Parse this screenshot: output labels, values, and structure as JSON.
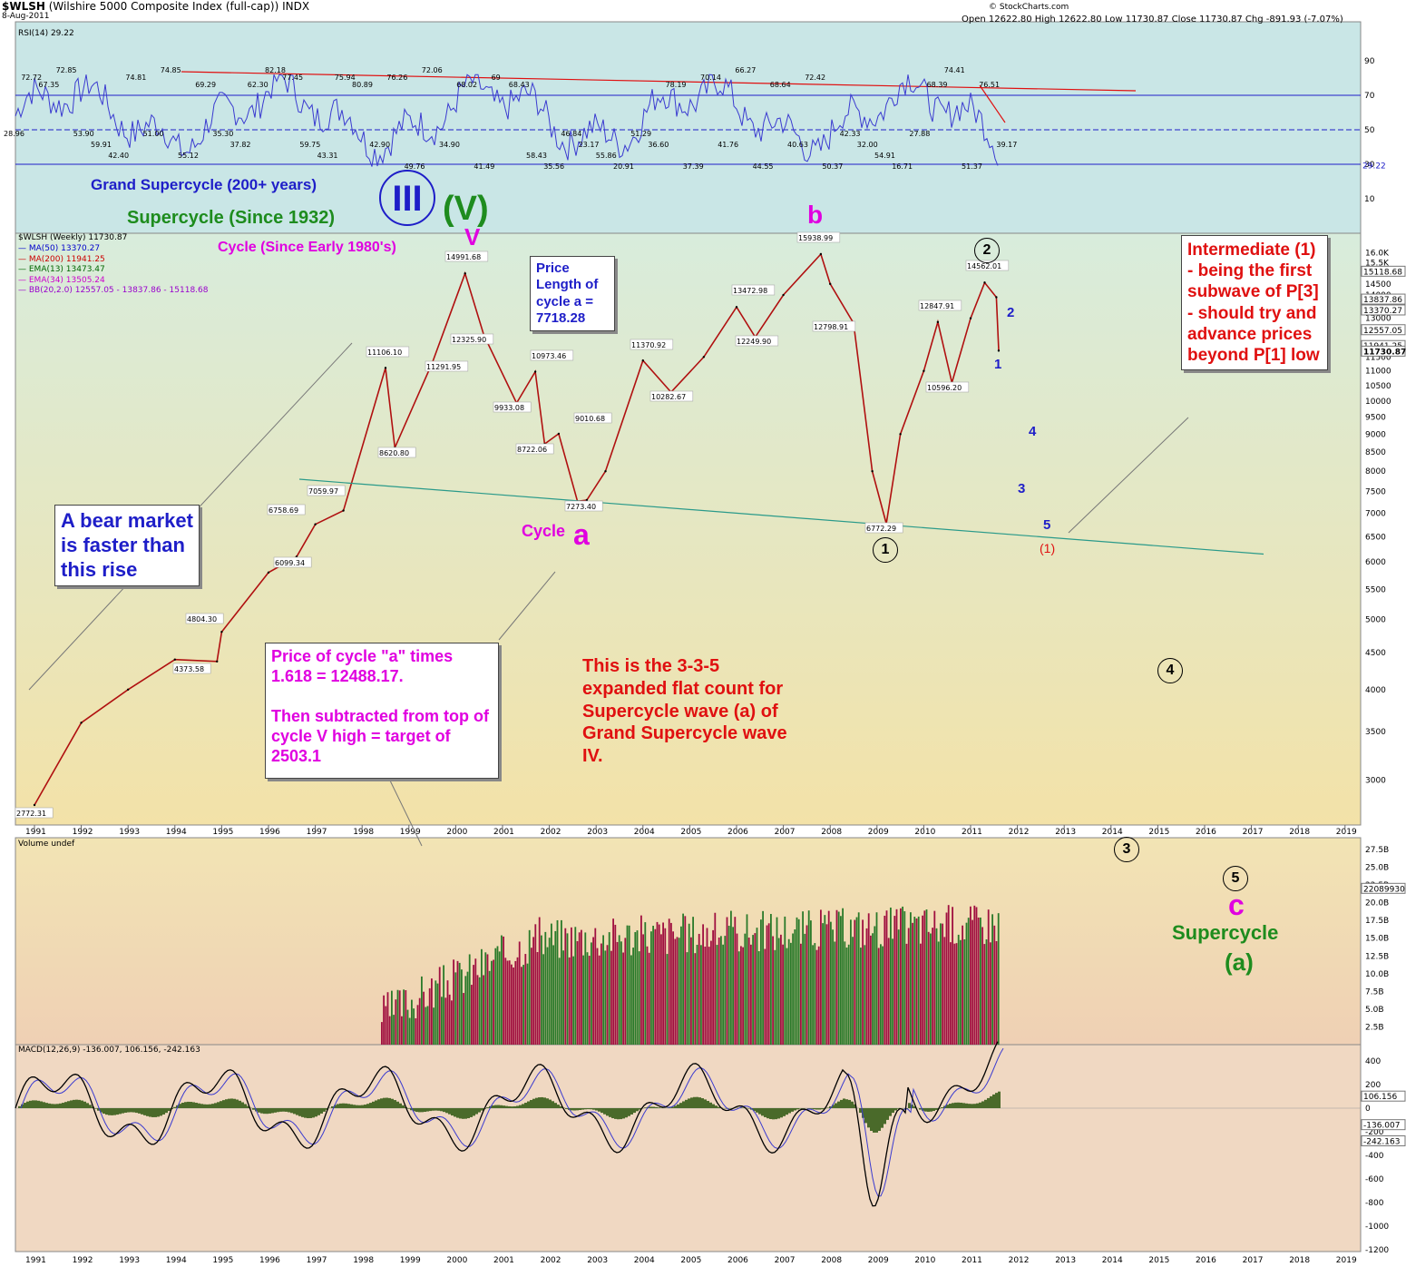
{
  "header": {
    "symbol": "$WLSH",
    "name": "(Wilshire 5000 Composite Index (full-cap))",
    "exchange": "INDX",
    "date": "8-Aug-2011",
    "ohlc": "Open 12622.80  High 12622.80  Low 11730.87  Close 11730.87  Chg -891.93 (-7.07%)",
    "watermark": "© StockCharts.com"
  },
  "rsi_panel": {
    "label": "RSI(14) 29.22",
    "ticks": [
      "90",
      "70",
      "50",
      "30",
      "10"
    ],
    "last_value": "29.22",
    "value_labels": [
      "28.96",
      "72.72",
      "67.35",
      "72.85",
      "53.90",
      "59.91",
      "42.40",
      "74.81",
      "51.00",
      "74.85",
      "55.12",
      "69.29",
      "35.30",
      "37.82",
      "62.30",
      "82.18",
      "77.45",
      "59.75",
      "43.31",
      "75.94",
      "80.89",
      "42.90",
      "76.26",
      "49.76",
      "72.06",
      "34.90",
      "68.02",
      "41.49",
      "69",
      "68.43",
      "58.43",
      "35.56",
      "46.84",
      "23.17",
      "55.86",
      "20.91",
      "51.29",
      "36.60",
      "78.19",
      "37.39",
      "70.14",
      "41.76",
      "66.27",
      "44.55",
      "68.64",
      "40.63",
      "72.42",
      "50.37",
      "42.33",
      "32.00",
      "54.91",
      "16.71",
      "27.88",
      "68.39",
      "74.41",
      "51.37",
      "76.51",
      "39.17"
    ]
  },
  "price_panel": {
    "label": "$WLSH (Weekly) 11730.87",
    "legend": [
      {
        "text": "MA(50) 13370.27",
        "color": "#0000cc"
      },
      {
        "text": "MA(200) 11941.25",
        "color": "#cc0000"
      },
      {
        "text": "EMA(13) 13473.47",
        "color": "#006600"
      },
      {
        "text": "EMA(34) 13505.24",
        "color": "#cc00cc"
      },
      {
        "text": "BB(20,2.0) 12557.05 - 13837.86 - 15118.68",
        "color": "#9900cc"
      }
    ],
    "y_ticks": [
      "16.0K",
      "15.5K",
      "14500",
      "14000",
      "13500",
      "13000",
      "12500",
      "12000",
      "11500",
      "11000",
      "10500",
      "10000",
      "9500",
      "9000",
      "8500",
      "8000",
      "7500",
      "7000",
      "6500",
      "6000",
      "5500",
      "5000",
      "4500",
      "4000",
      "3500",
      "3000"
    ],
    "right_tags": [
      "15118.68",
      "13837.86",
      "13370.27",
      "12557.05",
      "11941.25",
      "11730.87"
    ],
    "point_labels": [
      "2772.31",
      "4804.30",
      "4373.58",
      "6758.69",
      "6099.34",
      "7059.97",
      "11106.10",
      "8620.80",
      "11291.95",
      "14991.68",
      "12325.90",
      "9933.08",
      "10973.46",
      "8722.06",
      "9010.68",
      "7273.40",
      "11370.92",
      "10282.67",
      "13472.98",
      "12249.90",
      "15938.99",
      "12798.91",
      "6772.29",
      "12847.91",
      "10596.20",
      "14562.01"
    ]
  },
  "x_axis": {
    "years": [
      "1991",
      "1992",
      "1993",
      "1994",
      "1995",
      "1996",
      "1997",
      "1998",
      "1999",
      "2000",
      "2001",
      "2002",
      "2003",
      "2004",
      "2005",
      "2006",
      "2007",
      "2008",
      "2009",
      "2010",
      "2011",
      "2012",
      "2013",
      "2014",
      "2015",
      "2016",
      "2017",
      "2018",
      "2019"
    ]
  },
  "volume_panel": {
    "label": "Volume undef",
    "ticks": [
      "27.5B",
      "25.0B",
      "22.5B",
      "20.0B",
      "17.5B",
      "15.0B",
      "12.5B",
      "10.0B",
      "7.5B",
      "5.0B",
      "2.5B"
    ],
    "last_value": "22089930"
  },
  "macd_panel": {
    "label": "MACD(12,26,9) -136.007, 106.156, -242.163",
    "ticks": [
      "400",
      "200",
      "0",
      "-200",
      "-400",
      "-600",
      "-800",
      "-1000",
      "-1200"
    ],
    "tags": [
      "106.156",
      "-136.007",
      "-242.163"
    ]
  },
  "annotations": {
    "grand_supercycle": "Grand Supercycle (200+ years)",
    "supercycle": "Supercycle (Since 1932)",
    "cycle": "Cycle (Since Early 1980's)",
    "wave_III": "III",
    "wave_V_paren": "(V)",
    "wave_V": "V",
    "wave_b": "b",
    "cycle_a_word": "Cycle",
    "cycle_a_letter": "a",
    "price_length_box": "Price Length of cycle a = 7718.28",
    "bear_market_box": "A bear market is faster than this rise",
    "target_box_1": "Price of cycle \"a\" times 1.618 = 12488.17.",
    "target_box_2": "Then subtracted from top of cycle V high = target of 2503.1",
    "flat_count": "This is the 3-3-5 expanded flat count for Supercycle wave (a) of Grand Supercycle wave IV.",
    "intermediate_box": "Intermediate (1) - being the first subwave of P[3] - should try and advance prices beyond P[1] low",
    "circled": [
      "1",
      "2",
      "3",
      "4",
      "5"
    ],
    "minor_waves": [
      "2",
      "1",
      "4",
      "3",
      "5"
    ],
    "paren_one": "(1)",
    "c_letter": "c",
    "supercycle_a_1": "Supercycle",
    "supercycle_a_2": "(a)"
  },
  "chart_data": {
    "type": "line",
    "title": "$WLSH (Wilshire 5000 Composite Index (full-cap)) INDX",
    "x": [
      1991.0,
      1992.0,
      1993.0,
      1994.0,
      1994.9,
      1995.0,
      1996.0,
      1996.6,
      1997.0,
      1997.6,
      1998.5,
      1998.7,
      1999.5,
      2000.2,
      2000.6,
      2001.3,
      2001.7,
      2001.9,
      2002.2,
      2002.6,
      2002.8,
      2003.2,
      2004.0,
      2004.6,
      2005.3,
      2006.0,
      2006.4,
      2007.0,
      2007.8,
      2008.0,
      2008.5,
      2008.9,
      2009.2,
      2009.5,
      2010.0,
      2010.3,
      2010.6,
      2011.0,
      2011.3,
      2011.55,
      2011.6
    ],
    "values": [
      2772.31,
      3600,
      4000,
      4400,
      4373.58,
      4804.3,
      5800,
      6099.34,
      6758.69,
      7059.97,
      11106.1,
      8620.8,
      11291.95,
      14991.68,
      12325.9,
      9933.08,
      10973.46,
      8722.06,
      9010.68,
      7273.4,
      7300,
      8000,
      11370.92,
      10282.67,
      11500,
      13472.98,
      12249.9,
      14000,
      15938.99,
      14500,
      12798.91,
      8000,
      6772.29,
      9000,
      11000,
      12847.91,
      10596.2,
      13000,
      14562.01,
      13900,
      11730.87
    ],
    "ylabel": "",
    "ylim": [
      2700,
      16200
    ],
    "y_scale": "log"
  }
}
